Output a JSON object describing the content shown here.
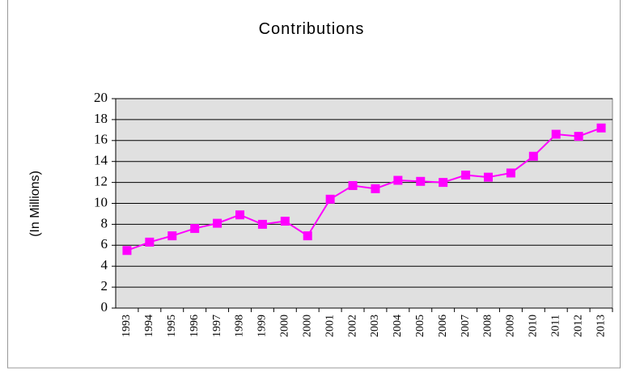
{
  "chart_data": {
    "type": "line",
    "title": "Contributions",
    "y_label": "(In Millions)",
    "categories": [
      "1993",
      "1994",
      "1995",
      "1996",
      "1997",
      "1998",
      "1999",
      "2000",
      "2000",
      "2001",
      "2002",
      "2003",
      "2004",
      "2005",
      "2006",
      "2007",
      "2008",
      "2009",
      "2010",
      "2011",
      "2012",
      "2013"
    ],
    "series": [
      {
        "name": "Contributions",
        "color": "#ff00ff",
        "values": [
          5.5,
          6.3,
          6.9,
          7.6,
          8.1,
          8.9,
          8.0,
          8.3,
          6.9,
          10.4,
          11.7,
          11.4,
          12.2,
          12.1,
          12.0,
          12.7,
          12.5,
          12.9,
          14.5,
          16.6,
          16.4,
          17.2
        ]
      }
    ],
    "ylim": [
      0,
      20
    ],
    "yticks": [
      0,
      2,
      4,
      6,
      8,
      10,
      12,
      14,
      16,
      18,
      20
    ],
    "grid": true
  }
}
